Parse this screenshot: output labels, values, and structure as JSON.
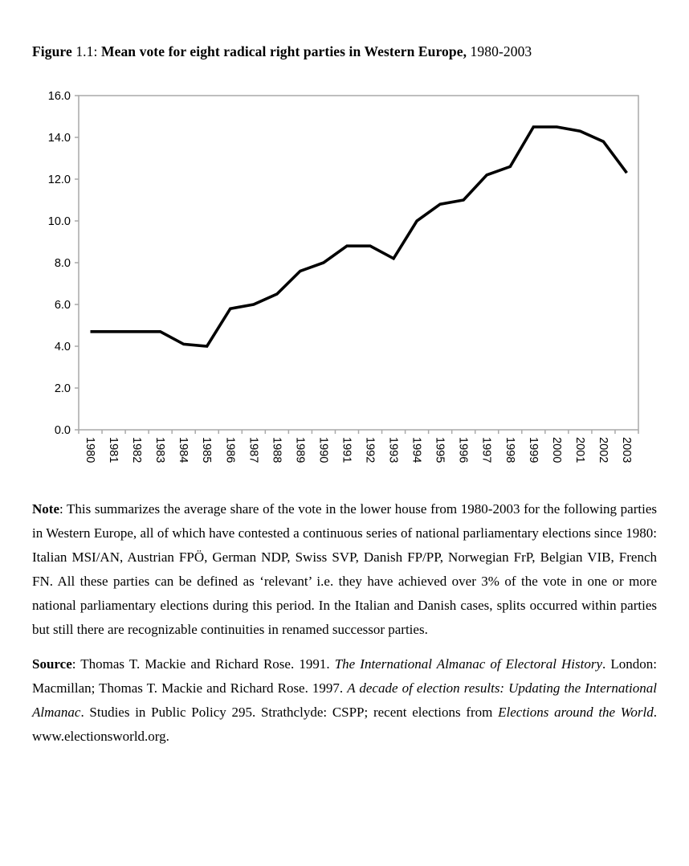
{
  "figure_title": {
    "label_bold": "Figure",
    "number": " 1.1: ",
    "caption_bold": "Mean vote for eight radical right parties in Western Europe,",
    "period": " 1980-2003"
  },
  "chart_data": {
    "type": "line",
    "title": "Mean vote for eight radical right parties in Western Europe, 1980-2003",
    "categories": [
      "1980",
      "1981",
      "1982",
      "1983",
      "1984",
      "1985",
      "1986",
      "1987",
      "1988",
      "1989",
      "1990",
      "1991",
      "1992",
      "1993",
      "1994",
      "1995",
      "1996",
      "1997",
      "1998",
      "1999",
      "2000",
      "2001",
      "2002",
      "2003"
    ],
    "series": [
      {
        "name": "mean-vote-share-percent",
        "values": [
          4.7,
          4.7,
          4.7,
          4.7,
          4.1,
          4.0,
          5.8,
          6.0,
          6.5,
          7.6,
          8.0,
          8.8,
          8.8,
          8.2,
          10.0,
          10.8,
          11.0,
          12.2,
          12.6,
          14.5,
          14.5,
          14.3,
          13.8,
          12.3
        ]
      }
    ],
    "xlabel": "",
    "ylabel": "",
    "ylim": [
      0,
      16
    ],
    "ytick_interval": 2,
    "ytick_labels": [
      "0.0",
      "2.0",
      "4.0",
      "6.0",
      "8.0",
      "10.0",
      "12.0",
      "14.0",
      "16.0"
    ],
    "grid": false,
    "legend": "none",
    "line_color": "#000000",
    "axis_color": "#a9a9a9"
  },
  "note": {
    "label": "Note",
    "text": ": This summarizes the average share of the vote in the lower house from 1980-2003 for the following parties in Western Europe, all of which have contested a continuous series of national parliamentary elections since 1980: Italian MSI/AN, Austrian FPÖ, German NDP, Swiss SVP, Danish FP/PP, Norwegian FrP, Belgian VIB, French FN. All these parties can be defined as ‘relevant’ i.e. they have achieved over 3% of the vote in one or more national parliamentary elections during this period. In the Italian and Danish cases, splits occurred within parties but still there are recognizable continuities in renamed successor parties."
  },
  "source": {
    "label": "Source",
    "seg1": ": Thomas T. Mackie and Richard Rose. 1991. ",
    "italic1": "The International Almanac of Electoral History",
    "seg2": ". London: Macmillan; Thomas T. Mackie and Richard Rose. 1997. ",
    "italic2": "A decade of election results: Updating the International Almanac",
    "seg3": ". Studies in Public Policy 295. Strathclyde: CSPP; recent elections from ",
    "italic3": "Elections around the World",
    "seg4": ". www.electionsworld.org."
  }
}
